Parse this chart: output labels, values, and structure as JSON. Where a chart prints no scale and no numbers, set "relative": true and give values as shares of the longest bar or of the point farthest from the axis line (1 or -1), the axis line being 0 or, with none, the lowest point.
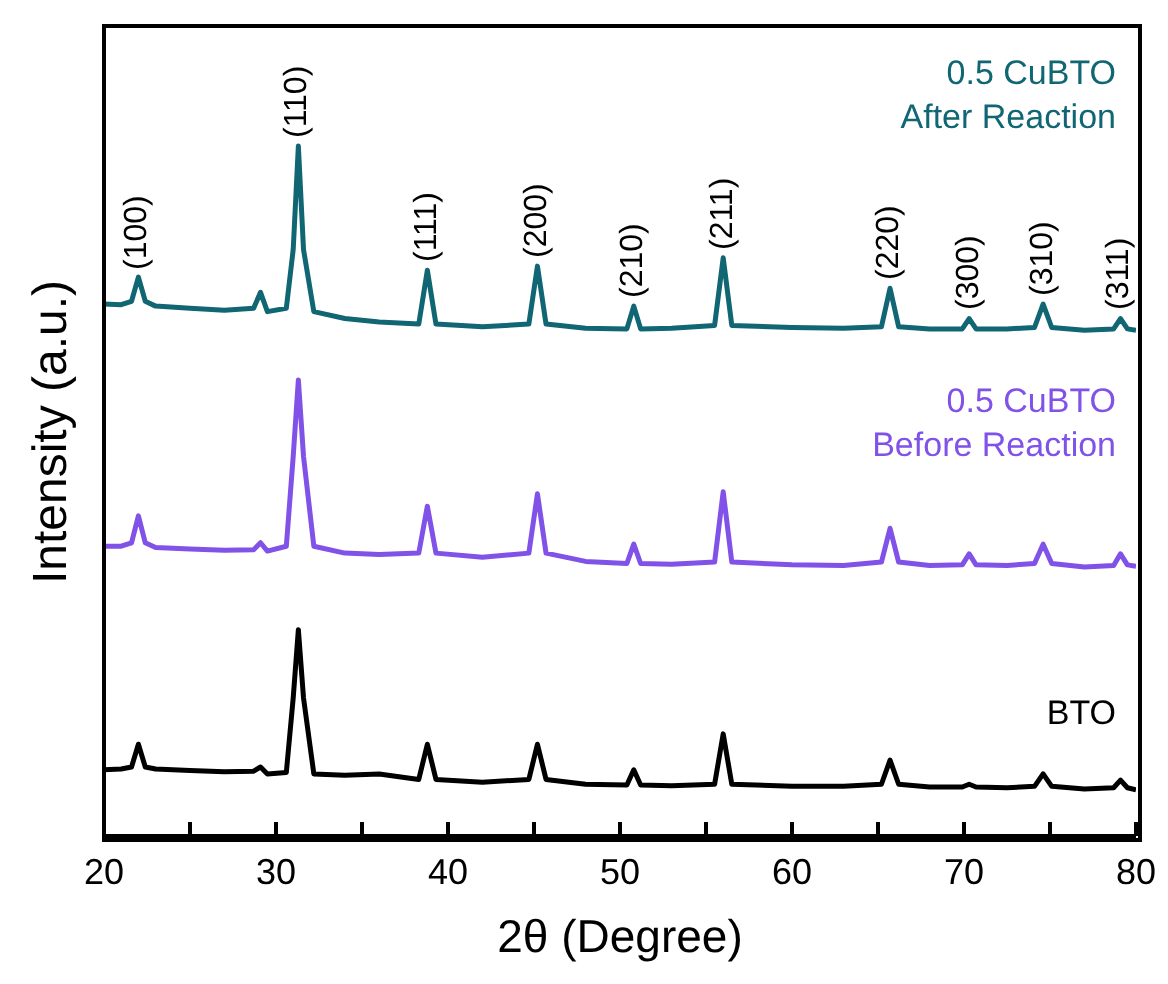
{
  "chart_data": {
    "type": "line",
    "relative": true,
    "xlabel": "2θ (Degree)",
    "ylabel": "Intensity (a.u.)",
    "xlim": [
      20,
      80
    ],
    "xticks": [
      20,
      {
        "value": 25,
        "label": null
      },
      30,
      {
        "value": 35,
        "label": null
      },
      40,
      {
        "value": 45,
        "label": null
      },
      50,
      {
        "value": 55,
        "label": null
      },
      60,
      {
        "value": 65,
        "label": null
      },
      70,
      {
        "value": 75,
        "label": null
      },
      80
    ],
    "x": [
      20,
      21,
      21.6,
      22,
      22.4,
      23,
      25,
      27,
      28.7,
      29.1,
      29.5,
      30.6,
      31.0,
      31.3,
      31.6,
      32.2,
      34,
      36,
      38.3,
      38.8,
      39.3,
      42,
      44.7,
      45.2,
      45.7,
      48,
      50.4,
      50.8,
      51.2,
      53,
      55.5,
      56.0,
      56.5,
      60,
      63,
      65.2,
      65.7,
      66.2,
      68,
      69.9,
      70.3,
      70.7,
      72.5,
      74.1,
      74.6,
      75.1,
      77,
      78.7,
      79.1,
      79.5,
      80
    ],
    "series": [
      {
        "name": "0.5 CuBTO After Reaction",
        "color": "#106672",
        "values": [
          0.771,
          0.77,
          0.775,
          0.81,
          0.775,
          0.768,
          0.765,
          0.762,
          0.765,
          0.788,
          0.76,
          0.765,
          0.85,
          1,
          0.85,
          0.76,
          0.75,
          0.745,
          0.742,
          0.82,
          0.742,
          0.738,
          0.742,
          0.826,
          0.742,
          0.736,
          0.735,
          0.768,
          0.735,
          0.736,
          0.74,
          0.838,
          0.74,
          0.737,
          0.736,
          0.738,
          0.794,
          0.738,
          0.735,
          0.735,
          0.75,
          0.735,
          0.735,
          0.737,
          0.771,
          0.737,
          0.733,
          0.735,
          0.75,
          0.735,
          0.733
        ]
      },
      {
        "name": "0.5 CuBTO Before Reaction",
        "color": "#8052e8",
        "values": [
          0.42,
          0.42,
          0.425,
          0.464,
          0.425,
          0.418,
          0.416,
          0.414,
          0.415,
          0.425,
          0.413,
          0.42,
          0.55,
          0.661,
          0.55,
          0.42,
          0.41,
          0.408,
          0.41,
          0.478,
          0.41,
          0.404,
          0.41,
          0.496,
          0.41,
          0.398,
          0.395,
          0.423,
          0.395,
          0.394,
          0.397,
          0.499,
          0.397,
          0.393,
          0.392,
          0.397,
          0.446,
          0.397,
          0.392,
          0.393,
          0.409,
          0.393,
          0.392,
          0.395,
          0.423,
          0.395,
          0.39,
          0.392,
          0.409,
          0.393,
          0.391
        ]
      },
      {
        "name": "BTO",
        "color": "#000000",
        "values": [
          0.096,
          0.097,
          0.1,
          0.133,
          0.1,
          0.097,
          0.095,
          0.093,
          0.094,
          0.1,
          0.09,
          0.092,
          0.2,
          0.299,
          0.2,
          0.09,
          0.088,
          0.09,
          0.082,
          0.133,
          0.082,
          0.078,
          0.082,
          0.133,
          0.082,
          0.075,
          0.074,
          0.096,
          0.074,
          0.073,
          0.075,
          0.148,
          0.075,
          0.072,
          0.072,
          0.075,
          0.11,
          0.075,
          0.071,
          0.071,
          0.075,
          0.071,
          0.07,
          0.072,
          0.09,
          0.072,
          0.068,
          0.07,
          0.081,
          0.07,
          0.067
        ]
      }
    ],
    "annotations": [
      {
        "text": "(100)",
        "x": 22,
        "y": 0.81
      },
      {
        "text": "(110)",
        "x": 31.3,
        "y": 1
      },
      {
        "text": "(111)",
        "x": 38.8,
        "y": 0.82
      },
      {
        "text": "(200)",
        "x": 45.2,
        "y": 0.826
      },
      {
        "text": "(210)",
        "x": 50.8,
        "y": 0.768
      },
      {
        "text": "(211)",
        "x": 56,
        "y": 0.838
      },
      {
        "text": "(220)",
        "x": 65.7,
        "y": 0.794
      },
      {
        "text": "(300)",
        "x": 70.3,
        "y": 0.75
      },
      {
        "text": "(310)",
        "x": 74.6,
        "y": 0.771
      },
      {
        "text": "(311)",
        "x": 79.1,
        "y": 0.75
      }
    ]
  }
}
